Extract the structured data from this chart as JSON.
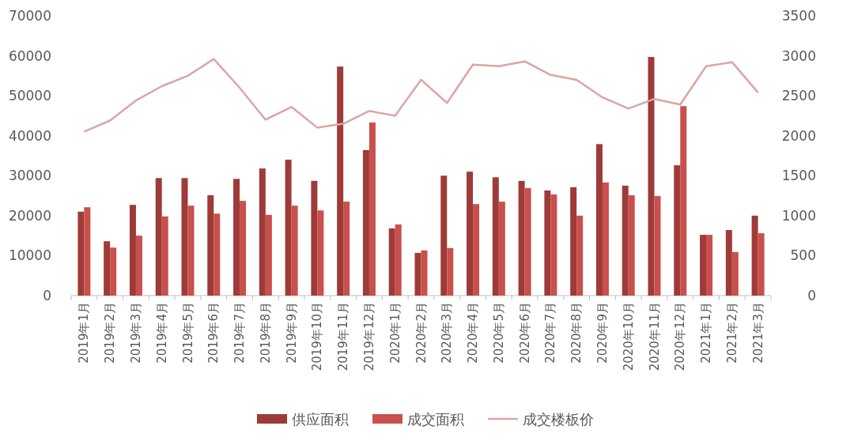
{
  "chart_data": {
    "type": "bar",
    "categories": [
      "2019年1月",
      "2019年2月",
      "2019年3月",
      "2019年4月",
      "2019年5月",
      "2019年6月",
      "2019年7月",
      "2019年8月",
      "2019年9月",
      "2019年10月",
      "2019年11月",
      "2019年12月",
      "2020年1月",
      "2020年2月",
      "2020年3月",
      "2020年4月",
      "2020年5月",
      "2020年6月",
      "2020年7月",
      "2020年8月",
      "2020年9月",
      "2020年10月",
      "2020年11月",
      "2020年12月",
      "2021年1月",
      "2021年2月",
      "2021年3月"
    ],
    "series": [
      {
        "name": "供应面积",
        "color": "#9e3b38",
        "values": [
          21000,
          13600,
          22700,
          29400,
          29400,
          25100,
          29200,
          31800,
          34000,
          28700,
          57300,
          36400,
          16800,
          10700,
          30000,
          31000,
          29600,
          28700,
          26300,
          27100,
          37900,
          27500,
          59700,
          32600,
          15200,
          16400,
          20000
        ]
      },
      {
        "name": "成交面积",
        "color": "#c9504c",
        "values": [
          22100,
          12000,
          15000,
          19800,
          22500,
          20500,
          23700,
          20200,
          22500,
          21300,
          23500,
          43300,
          17800,
          11300,
          11900,
          22900,
          23500,
          26900,
          25300,
          20000,
          28300,
          25100,
          24900,
          47400,
          15200,
          10900,
          15600
        ]
      },
      {
        "name": "成交楼板价",
        "type": "line",
        "axis": "y2",
        "color": "#dba5a3",
        "values": [
          2050,
          2190,
          2440,
          2620,
          2750,
          2960,
          2600,
          2200,
          2360,
          2100,
          2150,
          2310,
          2250,
          2700,
          2410,
          2890,
          2870,
          2930,
          2760,
          2700,
          2480,
          2340,
          2460,
          2390,
          2870,
          2920,
          2540
        ]
      }
    ],
    "ylim": [
      0,
      70000
    ],
    "yticks": [
      0,
      10000,
      20000,
      30000,
      40000,
      50000,
      60000,
      70000
    ],
    "y2lim": [
      0,
      3500
    ],
    "y2ticks": [
      0,
      500,
      1000,
      1500,
      2000,
      2500,
      3000,
      3500
    ],
    "grid": false,
    "legend": "bottom",
    "marker": "none"
  }
}
